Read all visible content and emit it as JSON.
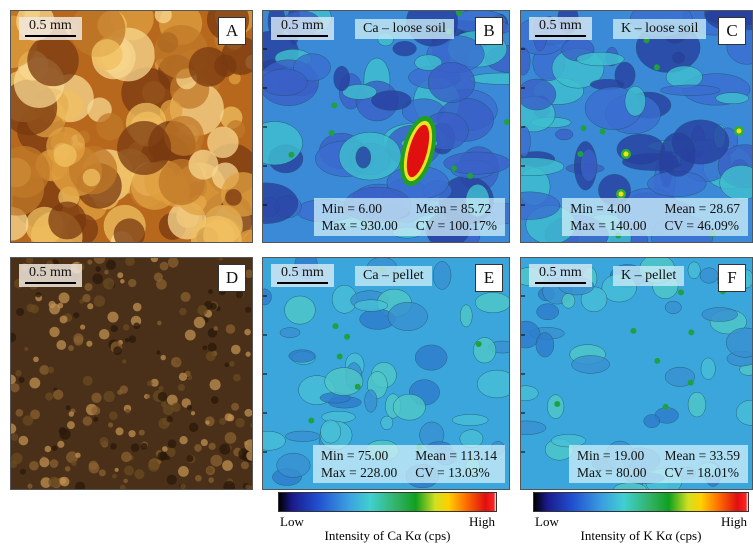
{
  "panels": [
    {
      "letter": "A",
      "scale": "0.5 mm"
    },
    {
      "letter": "B",
      "scale": "0.5 mm",
      "title": "Ca – loose soil",
      "stats": [
        "Min = 6.00",
        "Mean = 85.72",
        "Max = 930.00",
        "CV = 100.17%"
      ]
    },
    {
      "letter": "C",
      "scale": "0.5 mm",
      "title": "K – loose soil",
      "stats": [
        "Min = 4.00",
        "Mean = 28.67",
        "Max = 140.00",
        "CV = 46.09%"
      ]
    },
    {
      "letter": "D",
      "scale": "0.5 mm"
    },
    {
      "letter": "E",
      "scale": "0.5 mm",
      "title": "Ca – pellet",
      "stats": [
        "Min = 75.00",
        "Mean = 113.14",
        "Max = 228.00",
        "CV = 13.03%"
      ]
    },
    {
      "letter": "F",
      "scale": "0.5 mm",
      "title": "K – pellet",
      "stats": [
        "Min = 19.00",
        "Mean = 33.59",
        "Max = 80.00",
        "CV = 18.01%"
      ]
    }
  ],
  "colorbars": [
    {
      "low": "Low",
      "high": "High",
      "label": "Intensity of Ca Kα (cps)"
    },
    {
      "low": "Low",
      "high": "High",
      "label": "Intensity of K Kα (cps)"
    }
  ]
}
